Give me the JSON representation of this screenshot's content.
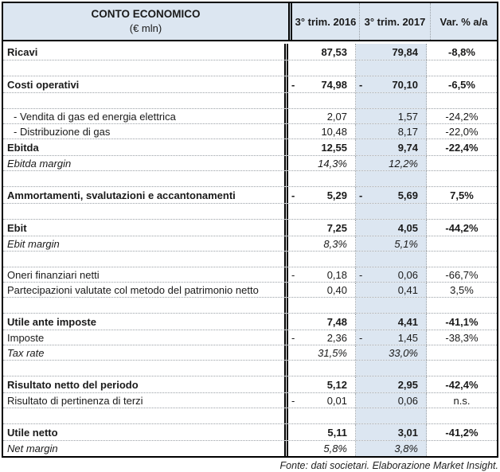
{
  "header": {
    "title": "CONTO ECONOMICO",
    "subtitle": "(€ mln)",
    "col_2016": "3° trim. 2016",
    "col_2017": "3° trim. 2017",
    "col_var": "Var. % a/a"
  },
  "colors": {
    "header_bg": "#dce6f1",
    "col2017_bg": "#dce6f1",
    "border": "#000000",
    "dotted": "#9aa0a6"
  },
  "rows": [
    {
      "label": "Ricavi",
      "neg2016": "",
      "v2016": "87,53",
      "neg2017": "",
      "v2017": "79,84",
      "var": "-8,8%"
    },
    {
      "type": "spacer"
    },
    {
      "label": "Costi operativi",
      "neg2016": "-",
      "v2016": "74,98",
      "neg2017": "-",
      "v2017": "70,10",
      "var": "-6,5%"
    },
    {
      "type": "spacer"
    },
    {
      "label": "- Vendita di gas ed energia elettrica",
      "neg2016": "",
      "v2016": "2,07",
      "neg2017": "",
      "v2017": "1,57",
      "var": "-24,2%"
    },
    {
      "label": "- Distribuzione di gas",
      "neg2016": "",
      "v2016": "10,48",
      "neg2017": "",
      "v2017": "8,17",
      "var": "-22,0%"
    },
    {
      "label": "Ebitda",
      "neg2016": "",
      "v2016": "12,55",
      "neg2017": "",
      "v2017": "9,74",
      "var": "-22,4%"
    },
    {
      "label": "Ebitda margin",
      "neg2016": "",
      "v2016": "14,3%",
      "neg2017": "",
      "v2017": "12,2%",
      "var": ""
    },
    {
      "type": "spacer"
    },
    {
      "label": "Ammortamenti, svalutazioni e accantonamenti",
      "neg2016": "-",
      "v2016": "5,29",
      "neg2017": "-",
      "v2017": "5,69",
      "var": "7,5%"
    },
    {
      "type": "spacer"
    },
    {
      "label": "Ebit",
      "neg2016": "",
      "v2016": "7,25",
      "neg2017": "",
      "v2017": "4,05",
      "var": "-44,2%"
    },
    {
      "label": "Ebit margin",
      "neg2016": "",
      "v2016": "8,3%",
      "neg2017": "",
      "v2017": "5,1%",
      "var": ""
    },
    {
      "type": "spacer"
    },
    {
      "label": "Oneri finanziari netti",
      "neg2016": "-",
      "v2016": "0,18",
      "neg2017": "-",
      "v2017": "0,06",
      "var": "-66,7%"
    },
    {
      "label": "Partecipazioni valutate col metodo del patrimonio netto",
      "neg2016": "",
      "v2016": "0,40",
      "neg2017": "",
      "v2017": "0,41",
      "var": "3,5%"
    },
    {
      "type": "spacer"
    },
    {
      "label": "Utile ante imposte",
      "neg2016": "",
      "v2016": "7,48",
      "neg2017": "",
      "v2017": "4,41",
      "var": "-41,1%"
    },
    {
      "label": "Imposte",
      "neg2016": "-",
      "v2016": "2,36",
      "neg2017": "-",
      "v2017": "1,45",
      "var": "-38,3%"
    },
    {
      "label": "Tax rate",
      "neg2016": "",
      "v2016": "31,5%",
      "neg2017": "",
      "v2017": "33,0%",
      "var": ""
    },
    {
      "type": "spacer"
    },
    {
      "label": "Risultato netto del periodo",
      "neg2016": "",
      "v2016": "5,12",
      "neg2017": "",
      "v2017": "2,95",
      "var": "-42,4%"
    },
    {
      "label": "Risultato di pertinenza di terzi",
      "neg2016": "-",
      "v2016": "0,01",
      "neg2017": "",
      "v2017": "0,06",
      "var": "n.s."
    },
    {
      "type": "spacer"
    },
    {
      "label": "Utile netto",
      "neg2016": "",
      "v2016": "5,11",
      "neg2017": "",
      "v2017": "3,01",
      "var": "-41,2%"
    },
    {
      "label": "Net margin",
      "neg2016": "",
      "v2016": "5,8%",
      "neg2017": "",
      "v2017": "3,8%",
      "var": ""
    }
  ],
  "footer": {
    "source": "Fonte: dati societari. Elaborazione Market Insight."
  }
}
